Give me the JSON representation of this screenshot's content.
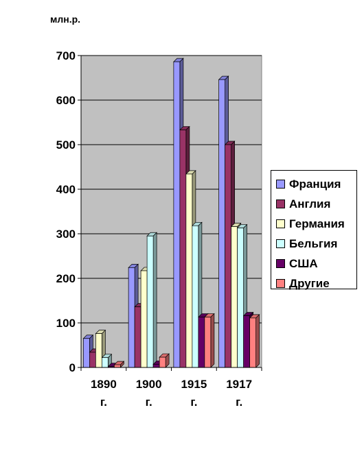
{
  "unit_label": "млн.р.",
  "chart_data": {
    "type": "bar",
    "ylabel": "млн.р.",
    "ylim": [
      0,
      700
    ],
    "yticks": [
      "0",
      "100",
      "200",
      "300",
      "400",
      "500",
      "600",
      "700"
    ],
    "grid": true,
    "legend_position": "right",
    "categories": [
      [
        "1890",
        "г."
      ],
      [
        "1900",
        "г."
      ],
      [
        "1915",
        "г."
      ],
      [
        "1917",
        "г."
      ]
    ],
    "series": [
      {
        "name": "Франция",
        "color": "#9999FF",
        "values": [
          65,
          224,
          686,
          646
        ]
      },
      {
        "name": "Англия",
        "color": "#993366",
        "values": [
          34,
          136,
          533,
          500
        ]
      },
      {
        "name": "Германия",
        "color": "#FFFFCC",
        "values": [
          76,
          217,
          434,
          316
        ]
      },
      {
        "name": "Бельгия",
        "color": "#CCFFFF",
        "values": [
          22,
          295,
          318,
          313
        ]
      },
      {
        "name": "США",
        "color": "#660066",
        "values": [
          2,
          7,
          113,
          116
        ]
      },
      {
        "name": "Другие",
        "color": "#FF8080",
        "values": [
          6,
          23,
          113,
          111
        ]
      }
    ]
  }
}
